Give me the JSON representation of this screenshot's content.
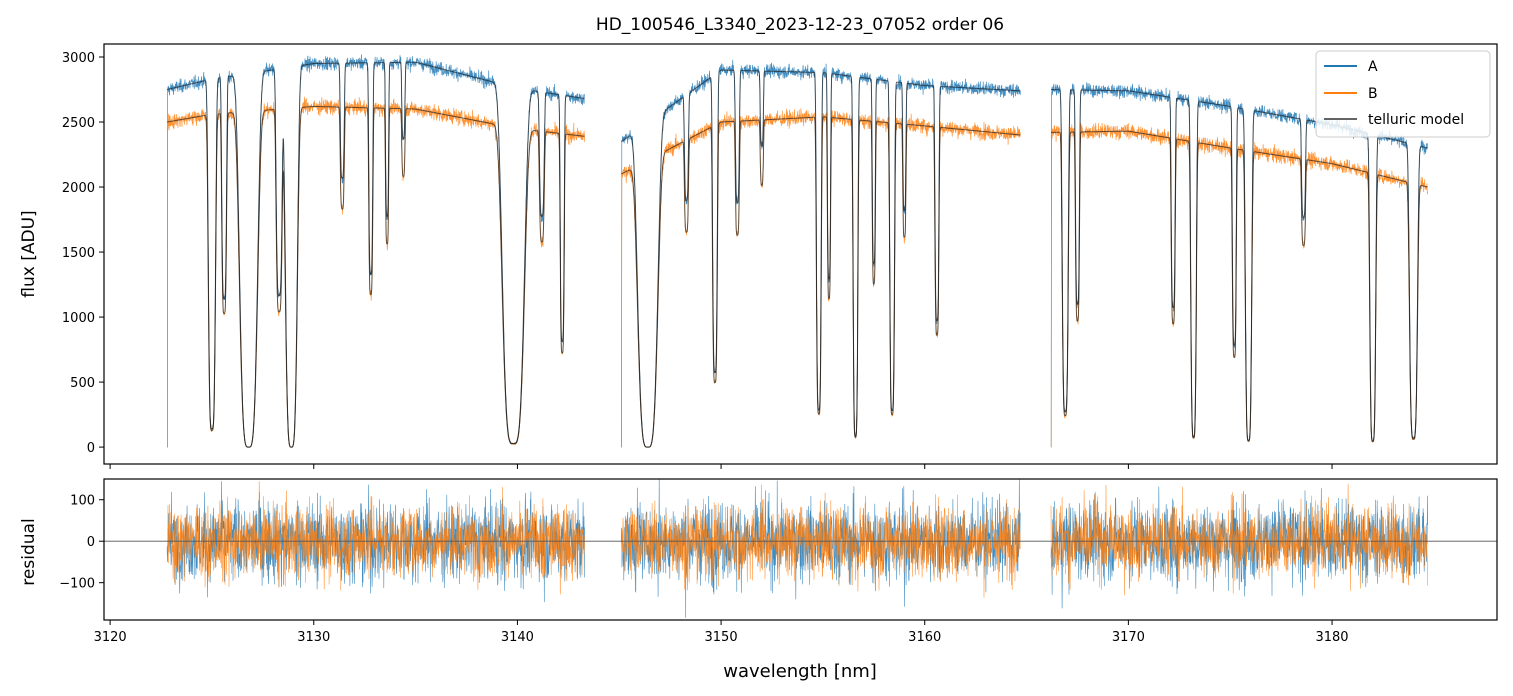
{
  "figure": {
    "title": "HD_100546_L3340_2023-12-23_07052  order 06"
  },
  "colors": {
    "A": "#1f77b4",
    "B": "#ff7f0e",
    "telluric": "#222222",
    "zero_line": "#555555"
  },
  "chart_data": [
    {
      "type": "line",
      "panel": "spectrum",
      "title": "HD_100546_L3340_2023-12-23_07052  order 06",
      "xlabel": "",
      "ylabel": "flux [ADU]",
      "xlim": [
        3119.7,
        3188.1
      ],
      "ylim": [
        -130,
        3100
      ],
      "yticks": [
        0,
        500,
        1000,
        1500,
        2000,
        2500,
        3000
      ],
      "xticks": [
        3120,
        3130,
        3140,
        3150,
        3160,
        3170,
        3180
      ],
      "legend": {
        "placement": "top-right",
        "entries": [
          "A",
          "B",
          "telluric model"
        ]
      },
      "grid": false,
      "segments": [
        [
          3122.8,
          3143.3
        ],
        [
          3145.1,
          3164.7
        ],
        [
          3166.2,
          3184.7
        ]
      ],
      "continuum_A": [
        [
          3122.8,
          2750
        ],
        [
          3125,
          2830
        ],
        [
          3130,
          2950
        ],
        [
          3135,
          2960
        ],
        [
          3140,
          2760
        ],
        [
          3143.3,
          2680
        ],
        [
          3145.1,
          2350
        ],
        [
          3150,
          2900
        ],
        [
          3155,
          2880
        ],
        [
          3160,
          2780
        ],
        [
          3164.7,
          2740
        ],
        [
          3166.2,
          2750
        ],
        [
          3170,
          2740
        ],
        [
          3175,
          2620
        ],
        [
          3180,
          2480
        ],
        [
          3184.7,
          2300
        ]
      ],
      "continuum_B": [
        [
          3122.8,
          2500
        ],
        [
          3125,
          2560
        ],
        [
          3130,
          2620
        ],
        [
          3135,
          2600
        ],
        [
          3140,
          2450
        ],
        [
          3143.3,
          2390
        ],
        [
          3145.1,
          2100
        ],
        [
          3150,
          2500
        ],
        [
          3155,
          2540
        ],
        [
          3160,
          2470
        ],
        [
          3164.7,
          2400
        ],
        [
          3166.2,
          2420
        ],
        [
          3170,
          2430
        ],
        [
          3175,
          2300
        ],
        [
          3180,
          2180
        ],
        [
          3184.7,
          2000
        ]
      ],
      "absorption_lines": [
        {
          "center": 3125.0,
          "depth": 0.95,
          "width": 0.18
        },
        {
          "center": 3125.6,
          "depth": 0.6,
          "width": 0.12
        },
        {
          "center": 3126.8,
          "depth": 1.0,
          "width": 0.45
        },
        {
          "center": 3128.3,
          "depth": 0.6,
          "width": 0.15
        },
        {
          "center": 3128.9,
          "depth": 1.0,
          "width": 0.3
        },
        {
          "center": 3131.4,
          "depth": 0.3,
          "width": 0.1
        },
        {
          "center": 3132.8,
          "depth": 0.55,
          "width": 0.1
        },
        {
          "center": 3133.6,
          "depth": 0.4,
          "width": 0.08
        },
        {
          "center": 3134.4,
          "depth": 0.2,
          "width": 0.08
        },
        {
          "center": 3139.8,
          "depth": 0.99,
          "width": 0.55
        },
        {
          "center": 3141.2,
          "depth": 0.35,
          "width": 0.12
        },
        {
          "center": 3142.2,
          "depth": 0.7,
          "width": 0.1
        },
        {
          "center": 3146.4,
          "depth": 1.0,
          "width": 0.5
        },
        {
          "center": 3148.3,
          "depth": 0.3,
          "width": 0.1
        },
        {
          "center": 3149.7,
          "depth": 0.8,
          "width": 0.12
        },
        {
          "center": 3150.8,
          "depth": 0.35,
          "width": 0.1
        },
        {
          "center": 3152.0,
          "depth": 0.2,
          "width": 0.08
        },
        {
          "center": 3154.8,
          "depth": 0.9,
          "width": 0.12
        },
        {
          "center": 3155.3,
          "depth": 0.55,
          "width": 0.08
        },
        {
          "center": 3156.6,
          "depth": 0.97,
          "width": 0.12
        },
        {
          "center": 3157.5,
          "depth": 0.5,
          "width": 0.08
        },
        {
          "center": 3158.4,
          "depth": 0.9,
          "width": 0.12
        },
        {
          "center": 3159.0,
          "depth": 0.35,
          "width": 0.08
        },
        {
          "center": 3160.6,
          "depth": 0.65,
          "width": 0.1
        },
        {
          "center": 3166.9,
          "depth": 0.9,
          "width": 0.15
        },
        {
          "center": 3167.5,
          "depth": 0.6,
          "width": 0.1
        },
        {
          "center": 3172.2,
          "depth": 0.6,
          "width": 0.1
        },
        {
          "center": 3173.2,
          "depth": 0.97,
          "width": 0.14
        },
        {
          "center": 3175.2,
          "depth": 0.7,
          "width": 0.1
        },
        {
          "center": 3175.9,
          "depth": 0.98,
          "width": 0.16
        },
        {
          "center": 3178.6,
          "depth": 0.3,
          "width": 0.1
        },
        {
          "center": 3182.0,
          "depth": 0.98,
          "width": 0.15
        },
        {
          "center": 3184.0,
          "depth": 0.97,
          "width": 0.2
        }
      ],
      "series": [
        {
          "name": "A",
          "color": "#1f77b4",
          "noise_rms": 60
        },
        {
          "name": "B",
          "color": "#ff7f0e",
          "noise_rms": 70
        },
        {
          "name": "telluric model",
          "color": "#222222",
          "noise_rms": 0
        }
      ]
    },
    {
      "type": "line",
      "panel": "residual",
      "xlabel": "wavelength [nm]",
      "ylabel": "residual",
      "xlim": [
        3119.7,
        3188.1
      ],
      "ylim": [
        -190,
        150
      ],
      "yticks": [
        -100,
        0,
        100
      ],
      "xticks": [
        3120,
        3130,
        3140,
        3150,
        3160,
        3170,
        3180
      ],
      "xtick_labels": [
        "3120",
        "3130",
        "3140",
        "3150",
        "3160",
        "3170",
        "3180"
      ],
      "zero_line": 0,
      "grid": false,
      "segments": [
        [
          3122.8,
          3143.3
        ],
        [
          3145.1,
          3164.7
        ],
        [
          3166.2,
          3184.7
        ]
      ],
      "series": [
        {
          "name": "A",
          "color": "#1f77b4",
          "noise_rms": 70
        },
        {
          "name": "B",
          "color": "#ff7f0e",
          "noise_rms": 65
        }
      ]
    }
  ]
}
